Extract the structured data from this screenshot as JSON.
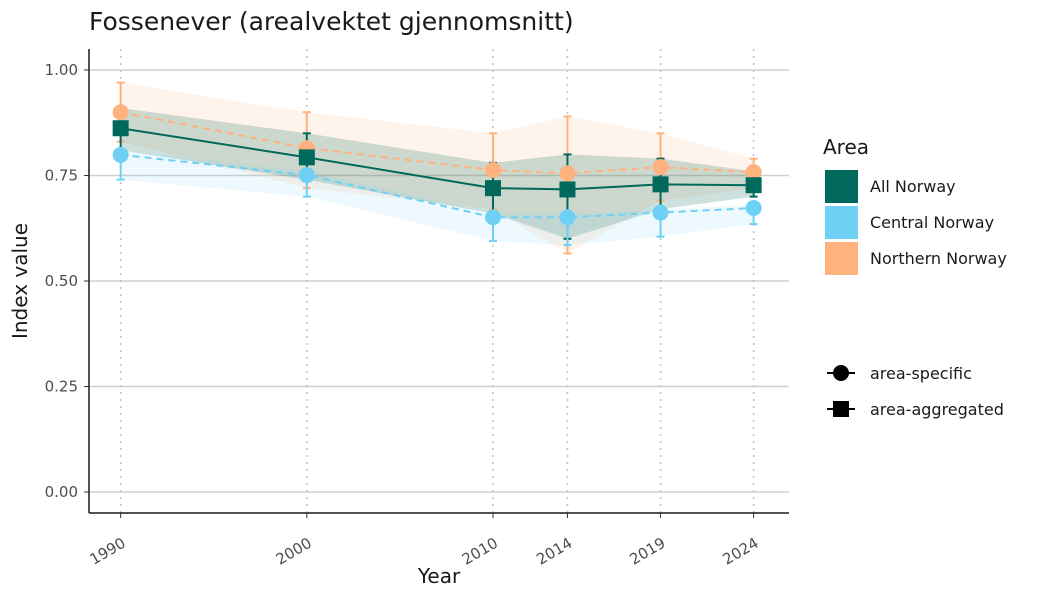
{
  "chart_data": {
    "type": "line",
    "title": "Fossenever (arealvektet gjennomsnitt)",
    "xlabel": "Year",
    "ylabel": "Index value",
    "x": [
      1990,
      2000,
      2010,
      2014,
      2019,
      2024
    ],
    "x_tick_labels": [
      "1990",
      "2000",
      "2010",
      "2014",
      "2019",
      "2024"
    ],
    "ylim": [
      0,
      1
    ],
    "y_ticks": [
      0,
      0.25,
      0.5,
      0.75,
      1.0
    ],
    "y_tick_labels": [
      "0.00",
      "0.25",
      "0.50",
      "0.75",
      "1.00"
    ],
    "grid": {
      "horizontal": true,
      "vertical_dotted_at_x": true
    },
    "legend_position": "right",
    "series": [
      {
        "name": "All Norway",
        "color": "#00695C",
        "linestyle": "solid",
        "marker": "square",
        "values": [
          0.862,
          0.793,
          0.72,
          0.717,
          0.729,
          0.727
        ],
        "lower": [
          0.81,
          0.74,
          0.66,
          0.6,
          0.67,
          0.7
        ],
        "upper": [
          0.91,
          0.85,
          0.78,
          0.8,
          0.79,
          0.76
        ]
      },
      {
        "name": "Central Norway",
        "color": "#6FD0F6",
        "linestyle": "dashed",
        "marker": "circle",
        "values": [
          0.799,
          0.751,
          0.651,
          0.651,
          0.662,
          0.673
        ],
        "lower": [
          0.74,
          0.7,
          0.595,
          0.585,
          0.605,
          0.635
        ],
        "upper": [
          0.81,
          0.76,
          0.66,
          0.66,
          0.67,
          0.68
        ]
      },
      {
        "name": "Northern Norway",
        "color": "#FFB27D",
        "linestyle": "dashed",
        "marker": "circle",
        "values": [
          0.9,
          0.815,
          0.763,
          0.755,
          0.77,
          0.758
        ],
        "lower": [
          0.83,
          0.72,
          0.67,
          0.565,
          0.69,
          0.72
        ],
        "upper": [
          0.97,
          0.9,
          0.85,
          0.89,
          0.85,
          0.79
        ]
      }
    ],
    "legend": {
      "title": "Area",
      "areas": [
        "All Norway",
        "Central Norway",
        "Northern Norway"
      ],
      "shapes": [
        {
          "label": "area-specific",
          "marker": "circle"
        },
        {
          "label": "area-aggregated",
          "marker": "square"
        }
      ]
    }
  }
}
